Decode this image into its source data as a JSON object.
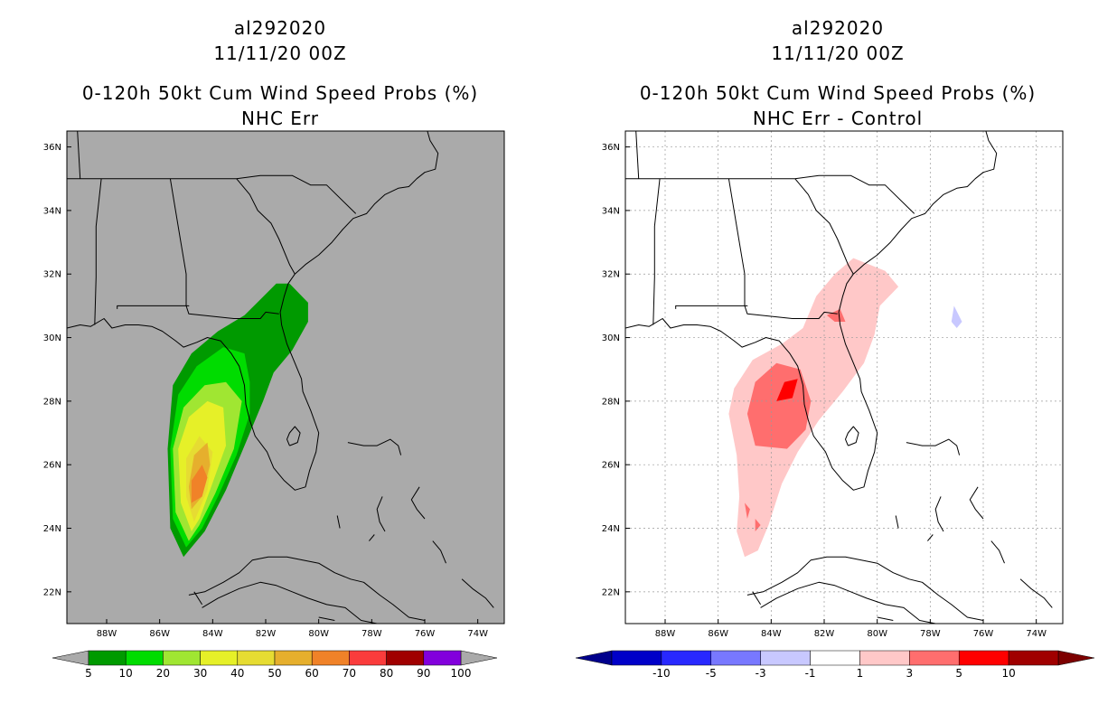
{
  "chart_data": [
    {
      "type": "contour-map",
      "storm_id": "al292020",
      "datetime": "11/11/20 00Z",
      "title": "0-120h 50kt Cum Wind Speed Probs (%)",
      "subtitle": "NHC Err",
      "background": "#aaaaaa",
      "lon_ticks": [
        "88W",
        "86W",
        "84W",
        "82W",
        "80W",
        "78W",
        "76W",
        "74W"
      ],
      "lat_ticks": [
        "36N",
        "34N",
        "32N",
        "30N",
        "28N",
        "26N",
        "24N",
        "22N"
      ],
      "lon_range": [
        -89.5,
        -73.0
      ],
      "lat_range": [
        21.0,
        36.5
      ],
      "colorbar": {
        "labels": [
          "5",
          "10",
          "20",
          "30",
          "40",
          "50",
          "60",
          "70",
          "80",
          "90",
          "100"
        ],
        "colors": [
          "#009a00",
          "#00dc00",
          "#a0e632",
          "#e6f028",
          "#e6dc32",
          "#e6af2d",
          "#f08228",
          "#fa3c3c",
          "#a00000",
          "#8200dc"
        ],
        "end_colors": [
          "#aaaaaa",
          "#aaaaaa"
        ]
      },
      "contours": [
        {
          "level": 5,
          "color": "#009a00",
          "poly": [
            [
              -85.1,
              23.1
            ],
            [
              -85.6,
              24.0
            ],
            [
              -85.7,
              26.5
            ],
            [
              -85.5,
              28.5
            ],
            [
              -84.8,
              29.5
            ],
            [
              -83.8,
              30.2
            ],
            [
              -82.8,
              30.7
            ],
            [
              -82.2,
              31.2
            ],
            [
              -81.6,
              31.7
            ],
            [
              -81.1,
              31.7
            ],
            [
              -80.4,
              31.1
            ],
            [
              -80.4,
              30.5
            ],
            [
              -81.0,
              29.6
            ],
            [
              -81.7,
              28.9
            ],
            [
              -82.1,
              28.0
            ],
            [
              -82.7,
              26.8
            ],
            [
              -83.5,
              25.2
            ],
            [
              -84.3,
              23.9
            ]
          ]
        },
        {
          "level": 10,
          "color": "#00dc00",
          "poly": [
            [
              -85.0,
              23.4
            ],
            [
              -85.5,
              24.3
            ],
            [
              -85.6,
              26.5
            ],
            [
              -85.3,
              28.2
            ],
            [
              -84.6,
              29.1
            ],
            [
              -83.6,
              29.7
            ],
            [
              -82.8,
              29.5
            ],
            [
              -82.6,
              28.6
            ],
            [
              -82.6,
              27.6
            ],
            [
              -83.1,
              26.3
            ],
            [
              -83.8,
              25.0
            ],
            [
              -84.4,
              24.0
            ]
          ]
        },
        {
          "level": 20,
          "color": "#a0e632",
          "poly": [
            [
              -84.9,
              23.6
            ],
            [
              -85.4,
              24.5
            ],
            [
              -85.5,
              26.5
            ],
            [
              -85.1,
              27.8
            ],
            [
              -84.3,
              28.5
            ],
            [
              -83.5,
              28.6
            ],
            [
              -82.9,
              28.0
            ],
            [
              -83.2,
              26.5
            ],
            [
              -83.9,
              25.1
            ],
            [
              -84.5,
              24.1
            ]
          ]
        },
        {
          "level": 30,
          "color": "#e6f028",
          "poly": [
            [
              -84.8,
              23.9
            ],
            [
              -85.2,
              24.8
            ],
            [
              -85.3,
              26.5
            ],
            [
              -84.9,
              27.5
            ],
            [
              -84.2,
              28.0
            ],
            [
              -83.6,
              27.8
            ],
            [
              -83.5,
              26.6
            ],
            [
              -84.1,
              25.2
            ],
            [
              -84.5,
              24.3
            ]
          ]
        },
        {
          "level": 40,
          "color": "#e6dc32",
          "poly": [
            [
              -84.7,
              24.2
            ],
            [
              -85.0,
              25.0
            ],
            [
              -85.0,
              26.2
            ],
            [
              -84.5,
              26.9
            ],
            [
              -84.0,
              26.4
            ],
            [
              -84.2,
              25.2
            ]
          ]
        },
        {
          "level": 50,
          "color": "#e6af2d",
          "poly": [
            [
              -84.8,
              24.6
            ],
            [
              -84.9,
              25.3
            ],
            [
              -84.7,
              26.3
            ],
            [
              -84.2,
              26.7
            ],
            [
              -84.1,
              26.0
            ],
            [
              -84.4,
              25.0
            ]
          ]
        },
        {
          "level": 60,
          "color": "#f08228",
          "poly": [
            [
              -84.8,
              24.8
            ],
            [
              -84.8,
              25.5
            ],
            [
              -84.4,
              26.0
            ],
            [
              -84.2,
              25.6
            ],
            [
              -84.4,
              25.0
            ]
          ]
        }
      ]
    },
    {
      "type": "contour-map",
      "storm_id": "al292020",
      "datetime": "11/11/20 00Z",
      "title": "0-120h 50kt Cum Wind Speed Probs (%)",
      "subtitle": "NHC Err - Control",
      "background": "#ffffff",
      "lon_ticks": [
        "88W",
        "86W",
        "84W",
        "82W",
        "80W",
        "78W",
        "76W",
        "74W"
      ],
      "lat_ticks": [
        "36N",
        "34N",
        "32N",
        "30N",
        "28N",
        "26N",
        "24N",
        "22N"
      ],
      "lon_range": [
        -89.5,
        -73.0
      ],
      "lat_range": [
        21.0,
        36.5
      ],
      "colorbar": {
        "labels": [
          "-10",
          "-5",
          "-3",
          "-1",
          "1",
          "3",
          "5",
          "10"
        ],
        "colors": [
          "#0000c8",
          "#2828ff",
          "#7878ff",
          "#c8c8ff",
          "#ffffff",
          "#ffc8c8",
          "#ff6e6e",
          "#ff0000",
          "#a00000"
        ],
        "end_colors": [
          "#00008c",
          "#7d0000"
        ]
      },
      "contours": [
        {
          "level": 1,
          "color": "#ffc8c8",
          "poly": [
            [
              -85.0,
              23.1
            ],
            [
              -85.3,
              23.9
            ],
            [
              -85.2,
              25.0
            ],
            [
              -85.3,
              26.3
            ],
            [
              -85.6,
              27.6
            ],
            [
              -85.4,
              28.4
            ],
            [
              -84.7,
              29.3
            ],
            [
              -83.6,
              29.8
            ],
            [
              -82.8,
              30.3
            ],
            [
              -82.3,
              31.3
            ],
            [
              -81.6,
              32.0
            ],
            [
              -80.9,
              32.5
            ],
            [
              -79.7,
              32.1
            ],
            [
              -79.2,
              31.6
            ],
            [
              -79.9,
              31.0
            ],
            [
              -80.1,
              30.1
            ],
            [
              -80.5,
              29.2
            ],
            [
              -81.3,
              28.3
            ],
            [
              -82.2,
              27.4
            ],
            [
              -83.0,
              26.4
            ],
            [
              -83.6,
              25.4
            ],
            [
              -84.1,
              24.1
            ],
            [
              -84.5,
              23.3
            ]
          ]
        },
        {
          "level": 3,
          "color": "#ff6e6e",
          "poly": [
            [
              -84.6,
              26.6
            ],
            [
              -84.9,
              27.6
            ],
            [
              -84.6,
              28.6
            ],
            [
              -83.8,
              29.2
            ],
            [
              -82.9,
              29.0
            ],
            [
              -82.5,
              28.0
            ],
            [
              -82.7,
              27.1
            ],
            [
              -83.4,
              26.5
            ]
          ]
        },
        {
          "level": 3,
          "color": "#ff6e6e",
          "poly": [
            [
              -81.6,
              30.5
            ],
            [
              -81.9,
              30.7
            ],
            [
              -81.4,
              30.9
            ],
            [
              -81.2,
              30.5
            ]
          ]
        },
        {
          "level": 3,
          "color": "#ff6e6e",
          "poly": [
            [
              -84.9,
              24.3
            ],
            [
              -85.0,
              24.8
            ],
            [
              -84.8,
              24.6
            ]
          ]
        },
        {
          "level": 3,
          "color": "#ff6e6e",
          "poly": [
            [
              -84.6,
              23.9
            ],
            [
              -84.6,
              24.3
            ],
            [
              -84.4,
              24.1
            ]
          ]
        },
        {
          "level": 5,
          "color": "#ff0000",
          "poly": [
            [
              -83.8,
              28.0
            ],
            [
              -83.5,
              28.6
            ],
            [
              -83.0,
              28.7
            ],
            [
              -83.2,
              28.1
            ]
          ]
        },
        {
          "level": -1,
          "color": "#c8c8ff",
          "poly": [
            [
              -77.2,
              30.5
            ],
            [
              -77.1,
              31.0
            ],
            [
              -76.8,
              30.5
            ],
            [
              -77.0,
              30.3
            ]
          ]
        }
      ]
    }
  ]
}
